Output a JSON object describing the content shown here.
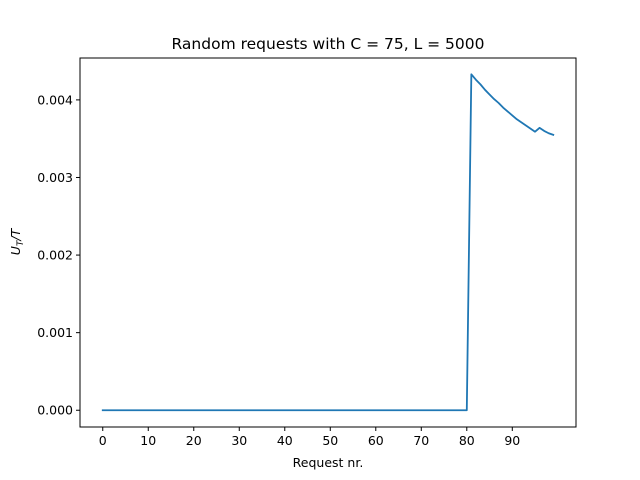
{
  "chart_data": {
    "type": "line",
    "title": "Random requests with C = 75, L = 5000",
    "xlabel": "Request nr.",
    "ylabel": "U_T/T",
    "ylabel_display": {
      "base": "U",
      "subscript": "T",
      "suffix": "/T"
    },
    "xlim": [
      -5,
      104
    ],
    "ylim": [
      -0.000216,
      0.00454
    ],
    "xticks": [
      0,
      10,
      20,
      30,
      40,
      50,
      60,
      70,
      80,
      90
    ],
    "xtick_labels": [
      "0",
      "10",
      "20",
      "30",
      "40",
      "50",
      "60",
      "70",
      "80",
      "90"
    ],
    "yticks": [
      0.0,
      0.001,
      0.002,
      0.003,
      0.004
    ],
    "ytick_labels": [
      "0.000",
      "0.001",
      "0.002",
      "0.003",
      "0.004"
    ],
    "grid": false,
    "legend": "none",
    "series": [
      {
        "color": "#1f77b4",
        "x": [
          0,
          10,
          20,
          30,
          40,
          50,
          60,
          70,
          80,
          81,
          82,
          83,
          84,
          85,
          86,
          87,
          88,
          89,
          90,
          91,
          92,
          93,
          94,
          95,
          96,
          97,
          98,
          99
        ],
        "y": [
          0.0,
          0.0,
          0.0,
          0.0,
          0.0,
          0.0,
          0.0,
          0.0,
          0.0,
          0.00433,
          0.00426,
          0.0042,
          0.00413,
          0.00407,
          0.00401,
          0.00396,
          0.0039,
          0.00385,
          0.0038,
          0.00375,
          0.00371,
          0.00367,
          0.00363,
          0.00359,
          0.00364,
          0.0036,
          0.00357,
          0.00355
        ]
      }
    ]
  }
}
